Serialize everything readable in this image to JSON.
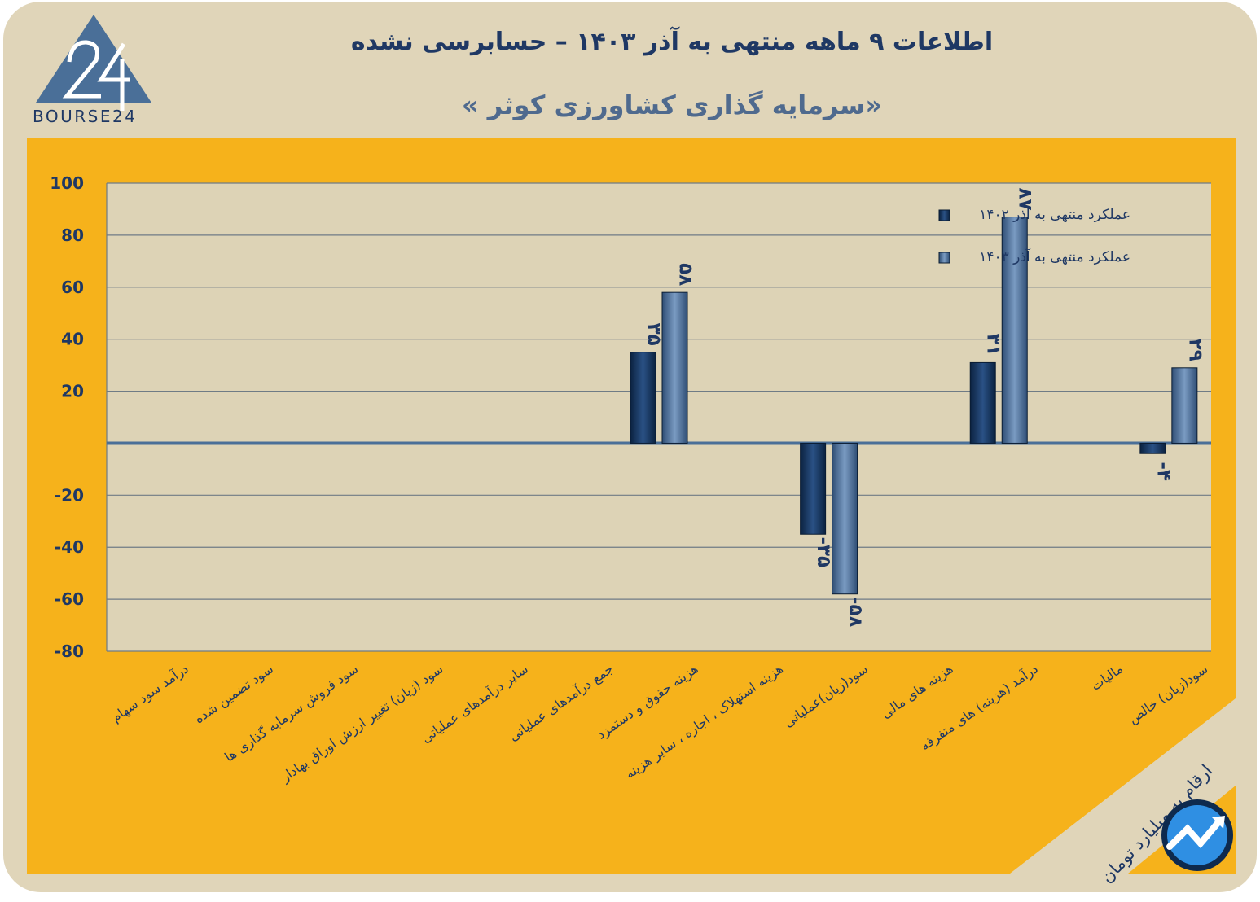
{
  "header": {
    "title": "اطلاعات ۹ ماهه منتهی به آذر ۱۴۰۳ – حسابرسی نشده",
    "subtitle": "«سرمایه گذاری کشاورزی کوثر »"
  },
  "logo": {
    "text": "BOURSE24",
    "mark": "24"
  },
  "note": "ارقام به میلیارد تومان",
  "colors": {
    "background": "#e0d5b9",
    "panel": "#f6b21b",
    "series_1402": "#1a3a63",
    "series_1403": "#52749e",
    "text": "#1f3864"
  },
  "chart_data": {
    "type": "bar",
    "categories": [
      "درآمد سود سهام",
      "سود تضمین شده",
      "سود فروش سرمایه گذاری ها",
      "سود (زیان) تغییر ارزش اوراق بهادار",
      "سایر درآمدهای عملیاتی",
      "جمع درآمدهای عملیاتی",
      "هزینه حقوق و دستمزد",
      "هزینه استهلاک ، اجاره ، سایر هزینه",
      "سود(زیان)عملیاتی",
      "هزینه های مالی",
      "درآمد (هزینه) های متفرقه",
      "مالیات",
      "سود(زیان) خالص"
    ],
    "series": [
      {
        "name": "عملکرد منتهی به آذر ۱۴۰۲",
        "values": [
          0,
          0,
          0,
          0,
          0,
          0,
          35,
          0,
          -35,
          0,
          31,
          0,
          -4
        ]
      },
      {
        "name": "عملکرد منتهی به آذر ۱۴۰۳",
        "values": [
          0,
          0,
          0,
          0,
          0,
          0,
          58,
          0,
          -58,
          0,
          87,
          0,
          29
        ]
      }
    ],
    "data_labels": {
      "1402": [
        "",
        "",
        "",
        "",
        "",
        "",
        "۳۵",
        "",
        "-۳۵",
        "",
        "۳۱",
        "",
        "-۴"
      ],
      "1403": [
        "",
        "",
        "",
        "",
        "",
        "",
        "۵۸",
        "",
        "-۵۸",
        "",
        "۸۷",
        "",
        "۲۹"
      ]
    },
    "y_ticks": [
      "100",
      "80",
      "60",
      "40",
      "20",
      "-20",
      "-40",
      "-60",
      "-80"
    ],
    "y_tick_values": [
      100,
      80,
      60,
      40,
      20,
      -20,
      -40,
      -60,
      -80
    ],
    "ylim": [
      -80,
      100
    ],
    "grid": true,
    "legend_position": "top-right"
  }
}
